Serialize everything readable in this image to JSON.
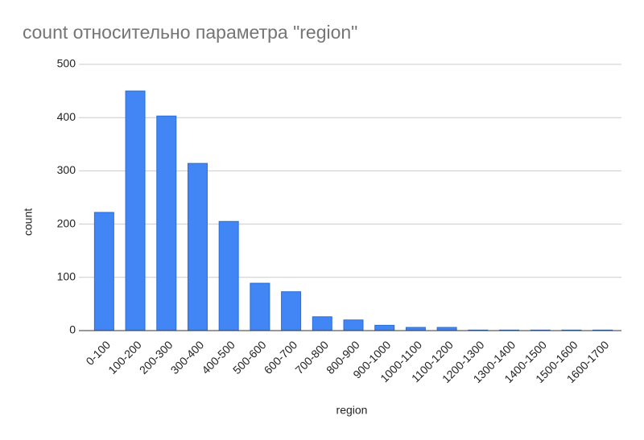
{
  "chart_data": {
    "type": "bar",
    "title": "count относительно параметра \"region\"",
    "x_label": "region",
    "y_label": "count",
    "categories": [
      "0-100",
      "100-200",
      "200-300",
      "300-400",
      "400-500",
      "500-600",
      "600-700",
      "700-800",
      "800-900",
      "900-1000",
      "1000-1100",
      "1100-1200",
      "1200-1300",
      "1300-1400",
      "1400-1500",
      "1500-1600",
      "1600-1700"
    ],
    "values": [
      222,
      450,
      403,
      314,
      205,
      89,
      73,
      26,
      20,
      10,
      6,
      6,
      1,
      1,
      1,
      1,
      1
    ],
    "color": "#4285f4",
    "ylim": [
      0,
      500
    ],
    "yticks": [
      0,
      100,
      200,
      300,
      400,
      500
    ],
    "grid": true
  }
}
